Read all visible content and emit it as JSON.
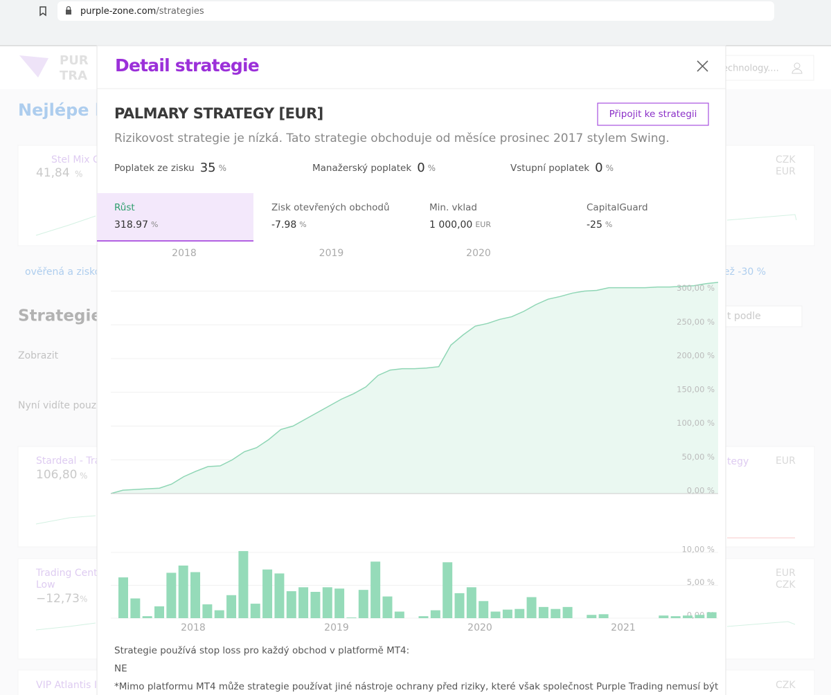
{
  "browser": {
    "url_host": "purple-zone.com",
    "url_path": "/strategies"
  },
  "background": {
    "texts": [
      "PUR",
      "TRA",
      "Nejlépe ho",
      "Stel Mix C",
      "41,84",
      "%",
      "ověřená a zisko",
      "Strategie",
      "Zobrazit",
      "Nyní vidíte pouze",
      "Stardeal - Tra",
      "106,80",
      "%",
      "Trading Cent",
      "Low",
      "−12,73",
      "%",
      "VIP Atlantis I",
      "echnology....",
      "CZK",
      "EUR",
      "ež -30 %",
      "t podle",
      "tegy",
      "EUR",
      "EUR",
      "CZK",
      "CZK"
    ]
  },
  "modal": {
    "title": "Detail strategie",
    "strategy_name": "PALMARY STRATEGY [EUR]",
    "join_button": "Připojit ke strategii",
    "description": "Rizikovost strategie je nízká. Tato strategie obchoduje od měsíce prosinec 2017 stylem Swing.",
    "fees": [
      {
        "label": "Poplatek ze zisku",
        "value": 35,
        "unit": "%"
      },
      {
        "label": "Manažerský poplatek",
        "value": 0,
        "unit": "%"
      },
      {
        "label": "Vstupní poplatek",
        "value": 0,
        "unit": "%"
      }
    ],
    "stats": [
      {
        "label": "Růst",
        "value": "318.97",
        "unit": "%"
      },
      {
        "label": "Zisk otevřených obchodů",
        "value": "-7.98",
        "unit": "%"
      },
      {
        "label": "Min. vklad",
        "value": "1 000,00",
        "unit": "EUR"
      },
      {
        "label": "CapitalGuard",
        "value": "-25",
        "unit": "%"
      }
    ],
    "notes": [
      "Strategie používá stop loss pro každý obchod v platformě MT4:",
      "NE",
      "*Mimo platformu MT4 může strategie používat jiné nástroje ochrany před riziky, které však společnost Purple Trading nemusí být"
    ]
  },
  "growth_chart": {
    "type": "area",
    "color": "#8fd6b5",
    "years": [
      "2018",
      "2019",
      "2020"
    ],
    "values": [
      0,
      5,
      6,
      7,
      8,
      14,
      25,
      33,
      40,
      41,
      50,
      62,
      68,
      80,
      95,
      100,
      110,
      120,
      130,
      140,
      148,
      158,
      175,
      183,
      185,
      185,
      186,
      188,
      220,
      235,
      248,
      252,
      258,
      262,
      270,
      280,
      288,
      292,
      297,
      300,
      301,
      305,
      305,
      305,
      305,
      306,
      306,
      307,
      308,
      311,
      313
    ],
    "ylim": [
      0,
      320
    ],
    "yticks": [
      {
        "value": 0,
        "label": "0,00 %"
      },
      {
        "value": 50,
        "label": "50,00 %"
      },
      {
        "value": 100,
        "label": "100,00 %"
      },
      {
        "value": 150,
        "label": "150,00 %"
      },
      {
        "value": 200,
        "label": "200,00 %"
      },
      {
        "value": 250,
        "label": "250,00 %"
      },
      {
        "value": 300,
        "label": "300,00 %"
      }
    ],
    "grid": true
  },
  "monthly_chart": {
    "type": "bar",
    "color": "#95dbb9",
    "years": [
      "2018",
      "2019",
      "2020",
      "2021"
    ],
    "values": [
      6.2,
      3.0,
      0.3,
      1.8,
      6.9,
      8.0,
      7.0,
      2.1,
      1.2,
      3.5,
      10.2,
      2.2,
      7.4,
      6.8,
      4.1,
      4.7,
      4.0,
      4.7,
      4.5,
      0.1,
      4.3,
      8.6,
      3.3,
      1.0,
      0,
      0.3,
      1.2,
      8.5,
      3.8,
      4.7,
      2.6,
      1.0,
      1.3,
      1.4,
      3.2,
      1.7,
      1.4,
      1.7,
      0,
      0.5,
      0.6,
      0,
      0,
      0,
      0,
      0.4,
      0.3,
      0.4,
      0.5,
      0.9
    ],
    "ylim": [
      0,
      11
    ],
    "yticks": [
      {
        "value": 0,
        "label": "0,00 %"
      },
      {
        "value": 5,
        "label": "5,00 %"
      },
      {
        "value": 10,
        "label": "10,00 %"
      }
    ],
    "grid": true
  }
}
